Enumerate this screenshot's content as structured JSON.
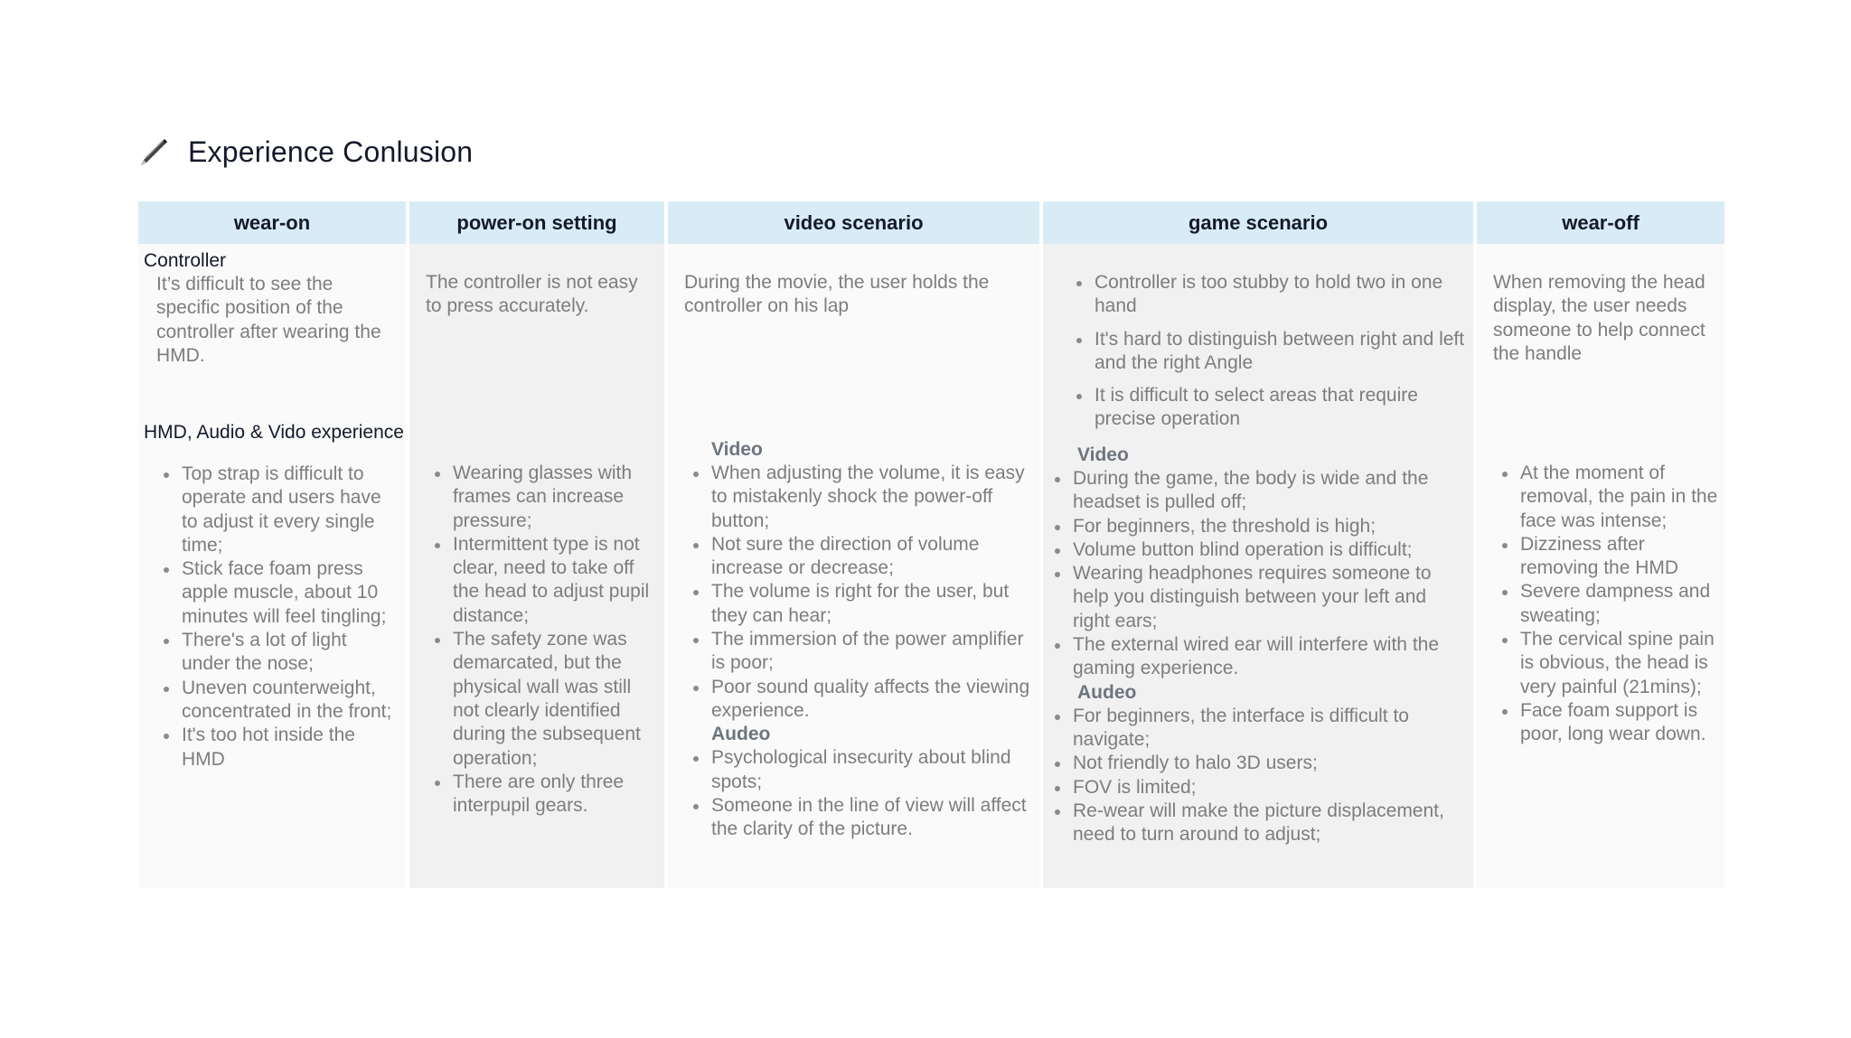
{
  "page": {
    "title": "Experience Conlusion",
    "icon": "pencil-icon"
  },
  "colors": {
    "header_bg": "#d9ecf6",
    "column_light": "#fafafa",
    "column_dark": "#f1f1f1",
    "text": "#7d7d7d"
  },
  "columns": [
    {
      "header": "wear-on",
      "top": {
        "heading": "Controller",
        "text": "It’s difficult to see the specific position of the controller after wearing the HMD."
      },
      "bottom": {
        "heading": "HMD, Audio & Vido experience",
        "sections": [
          {
            "bullets": [
              "Top strap is difficult to operate and users have to adjust it every single time;",
              "Stick face foam press apple muscle, about 10 minutes will feel tingling;",
              "There's a lot of light under the nose;",
              "Uneven counterweight, concentrated in the front;",
              "It's too hot inside the HMD"
            ]
          }
        ]
      }
    },
    {
      "header": "power-on setting",
      "top": {
        "text": "The controller is not easy to press accurately."
      },
      "bottom": {
        "sections": [
          {
            "bullets": [
              "Wearing glasses with frames can increase pressure;",
              "Intermittent type is not clear, need to take off the head to adjust pupil distance;",
              "The safety zone was demarcated, but the physical wall was still not clearly identified during the subsequent operation;",
              "There are only three interpupil gears."
            ]
          }
        ]
      }
    },
    {
      "header": "video scenario",
      "top": {
        "text": "During the movie, the user holds the controller on his lap"
      },
      "bottom": {
        "sections": [
          {
            "heading": "Video",
            "bullets": [
              "When adjusting the volume, it is easy to mistakenly shock the power-off button;",
              "Not sure the direction of volume increase or decrease;",
              "The volume is right for the user, but they can hear;",
              "The immersion of the power amplifier is poor;",
              "Poor sound quality affects the viewing experience."
            ]
          },
          {
            "heading": "Audeo",
            "bullets": [
              "Psychological insecurity about blind spots;",
              "Someone in the line of view will affect the clarity of the picture."
            ]
          }
        ]
      }
    },
    {
      "header": "game scenario",
      "top": {
        "bullets": [
          "Controller is too stubby to hold two in one hand",
          "It's hard to distinguish between right and left and the right Angle",
          "It is difficult to select areas that require precise operation"
        ]
      },
      "bottom": {
        "sections": [
          {
            "heading": "Video",
            "bullets": [
              "During the game, the body is wide and the headset is pulled off;",
              "For beginners, the threshold is high;",
              "Volume button blind operation is difficult;",
              "Wearing headphones requires someone to help you distinguish between your left and right ears;",
              "The external wired ear will interfere with the gaming experience."
            ]
          },
          {
            "heading": "Audeo",
            "bullets": [
              "For beginners, the interface is difficult to navigate;",
              "Not friendly to halo 3D users;",
              "FOV is limited;",
              "Re-wear will make the picture displacement, need to turn around to adjust;"
            ]
          }
        ]
      }
    },
    {
      "header": "wear-off",
      "top": {
        "text": "When removing the head display, the user needs someone to help connect the handle"
      },
      "bottom": {
        "sections": [
          {
            "bullets": [
              "At the moment of removal, the pain in the face was intense;",
              "Dizziness after removing the HMD",
              "Severe dampness and sweating;",
              "The cervical spine pain is obvious, the head is very painful (21mins);",
              "Face foam support is poor, long wear down."
            ]
          }
        ]
      }
    }
  ]
}
